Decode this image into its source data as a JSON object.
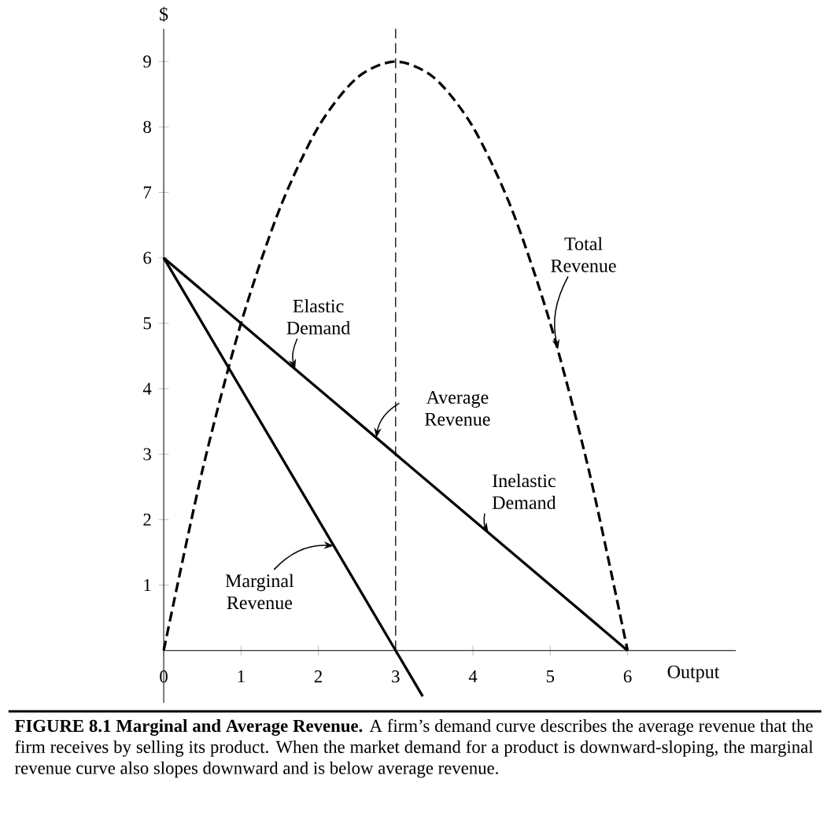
{
  "chart_data": {
    "type": "line",
    "xlabel": "Output",
    "ylabel": "$",
    "xlim": [
      0,
      7.4
    ],
    "ylim": [
      -0.8,
      9.5
    ],
    "xticks": [
      0,
      1,
      2,
      3,
      4,
      5,
      6
    ],
    "yticks": [
      1,
      2,
      3,
      4,
      5,
      6,
      7,
      8,
      9
    ],
    "marker": "none",
    "series": [
      {
        "color": "#000000",
        "line_style": "dashed",
        "x": [
          0,
          0.5,
          1,
          1.5,
          2,
          2.5,
          3,
          3.5,
          4,
          4.5,
          5,
          5.5,
          6
        ],
        "values": [
          0,
          2.75,
          5,
          6.75,
          8,
          8.75,
          9,
          8.75,
          8,
          6.75,
          5,
          2.75,
          0
        ]
      },
      {
        "color": "#000000",
        "line_style": "solid",
        "x": [
          0,
          6
        ],
        "values": [
          6,
          0
        ]
      },
      {
        "color": "#000000",
        "line_style": "solid",
        "x": [
          0,
          3.35
        ],
        "values": [
          6,
          -0.7
        ]
      }
    ],
    "ref_lines": [
      {
        "axis": "x",
        "value": 3,
        "line_style": "dashed",
        "color": "#000000"
      }
    ],
    "annotations": [
      {
        "text": "Total Revenue",
        "x": 5.1,
        "y": 4.6
      },
      {
        "text": "Elastic Demand",
        "x": 1.7,
        "y": 4.3
      },
      {
        "text": "Average Revenue",
        "x": 2.75,
        "y": 3.25
      },
      {
        "text": "Inelastic Demand",
        "x": 4.2,
        "y": 1.8
      },
      {
        "text": "Marginal Revenue",
        "x": 2.2,
        "y": 1.6
      },
      "**FIGURE 8.1   Marginal and Average Revenue.**   A firm’s demand curve describes the average revenue that the firm receives by selling its product. When the market demand for a product is downward-sloping, the marginal revenue curve also slopes downward and is below average revenue."
    ]
  }
}
